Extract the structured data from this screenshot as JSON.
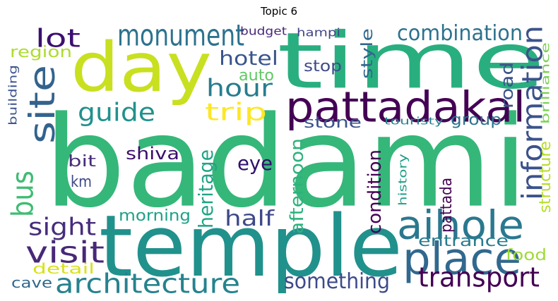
{
  "title": "Topic 6",
  "words": [
    {
      "text": "badami",
      "color": "#35b779"
    },
    {
      "text": "temple",
      "color": "#21918c"
    },
    {
      "text": "time",
      "color": "#29af7f"
    },
    {
      "text": "day",
      "color": "#c8e020"
    },
    {
      "text": "site",
      "color": "#33638d"
    },
    {
      "text": "pattadakal",
      "color": "#440154"
    },
    {
      "text": "aihole",
      "color": "#2a788e"
    },
    {
      "text": "place",
      "color": "#31688e"
    },
    {
      "text": "information",
      "color": "#3b528b"
    },
    {
      "text": "monument",
      "color": "#2c728e"
    },
    {
      "text": "bus",
      "color": "#3fbc73"
    },
    {
      "text": "architecture",
      "color": "#26828e"
    },
    {
      "text": "visit",
      "color": "#482878"
    },
    {
      "text": "transport",
      "color": "#440154"
    },
    {
      "text": "guide",
      "color": "#21918c"
    },
    {
      "text": "hour",
      "color": "#287c8e"
    },
    {
      "text": "trip",
      "color": "#fde725"
    },
    {
      "text": "combination",
      "color": "#2c728e"
    },
    {
      "text": "sight",
      "color": "#472d7b"
    },
    {
      "text": "lot",
      "color": "#3b0f70"
    },
    {
      "text": "hotel",
      "color": "#39558c"
    },
    {
      "text": "heritage",
      "color": "#20a486"
    },
    {
      "text": "condition",
      "color": "#440154"
    },
    {
      "text": "afternoon",
      "color": "#2db27d"
    },
    {
      "text": "road",
      "color": "#3b528b"
    },
    {
      "text": "structure",
      "color": "#b5de2b"
    },
    {
      "text": "something",
      "color": "#3e4a89"
    },
    {
      "text": "half",
      "color": "#3e4989"
    },
    {
      "text": "shiva",
      "color": "#3d0d6b"
    },
    {
      "text": "eye",
      "color": "#30106b"
    },
    {
      "text": "style",
      "color": "#31688e"
    },
    {
      "text": "stop",
      "color": "#3e4a89"
    },
    {
      "text": "stone",
      "color": "#3b528b"
    },
    {
      "text": "group",
      "color": "#2c728e"
    },
    {
      "text": "pattada",
      "color": "#440154"
    },
    {
      "text": "entrance",
      "color": "#287c8e"
    },
    {
      "text": "morning",
      "color": "#1fa188"
    },
    {
      "text": "region",
      "color": "#addc30"
    },
    {
      "text": "auto",
      "color": "#5ec962"
    },
    {
      "text": "bit",
      "color": "#472d7b"
    },
    {
      "text": "km",
      "color": "#3e4a89"
    },
    {
      "text": "food",
      "color": "#a0da39"
    },
    {
      "text": "detail",
      "color": "#d8e219"
    },
    {
      "text": "cave",
      "color": "#31688e"
    },
    {
      "text": "budget",
      "color": "#482878"
    },
    {
      "text": "hampi",
      "color": "#414487"
    },
    {
      "text": "building",
      "color": "#3b528b"
    },
    {
      "text": "touristy",
      "color": "#26828e"
    },
    {
      "text": "brilliance",
      "color": "#7ad151"
    },
    {
      "text": "history",
      "color": "#1f9e89"
    }
  ]
}
